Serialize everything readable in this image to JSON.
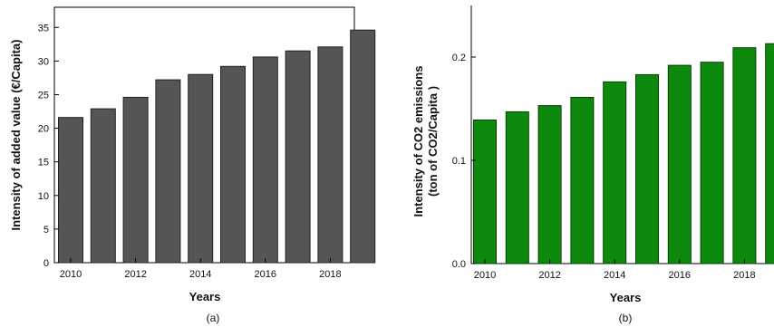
{
  "chart_data": [
    {
      "type": "bar",
      "panel_label": "(a)",
      "xlabel": "Years",
      "ylabel": "Intensity of added value (€/Capita)",
      "x": [
        2010,
        2011,
        2012,
        2013,
        2014,
        2015,
        2016,
        2017,
        2018,
        2019
      ],
      "values": [
        21.6,
        22.9,
        24.6,
        27.2,
        28.0,
        29.2,
        30.6,
        31.5,
        32.1,
        34.6
      ],
      "xticks": [
        2010,
        2012,
        2014,
        2016,
        2018
      ],
      "yticks": [
        0,
        5,
        10,
        15,
        20,
        25,
        30,
        35
      ],
      "ylim": [
        0,
        38
      ],
      "bar_color": "#555555",
      "grid": false
    },
    {
      "type": "bar",
      "panel_label": "(b)",
      "xlabel": "Years",
      "ylabel_lines": [
        "Intensity of CO2 emissions",
        "(ton of CO2/Capita )"
      ],
      "x": [
        2010,
        2011,
        2012,
        2013,
        2014,
        2015,
        2016,
        2017,
        2018,
        2019
      ],
      "values": [
        0.139,
        0.147,
        0.153,
        0.161,
        0.176,
        0.183,
        0.192,
        0.195,
        0.209,
        0.213
      ],
      "xticks": [
        2010,
        2012,
        2014,
        2016,
        2018
      ],
      "yticks": [
        0.0,
        0.1,
        0.2
      ],
      "yticks_text": [
        "0.0",
        "0.1",
        "0.2"
      ],
      "ylim": [
        0,
        0.25
      ],
      "bar_color": "#0d8a0d",
      "grid": false
    }
  ]
}
